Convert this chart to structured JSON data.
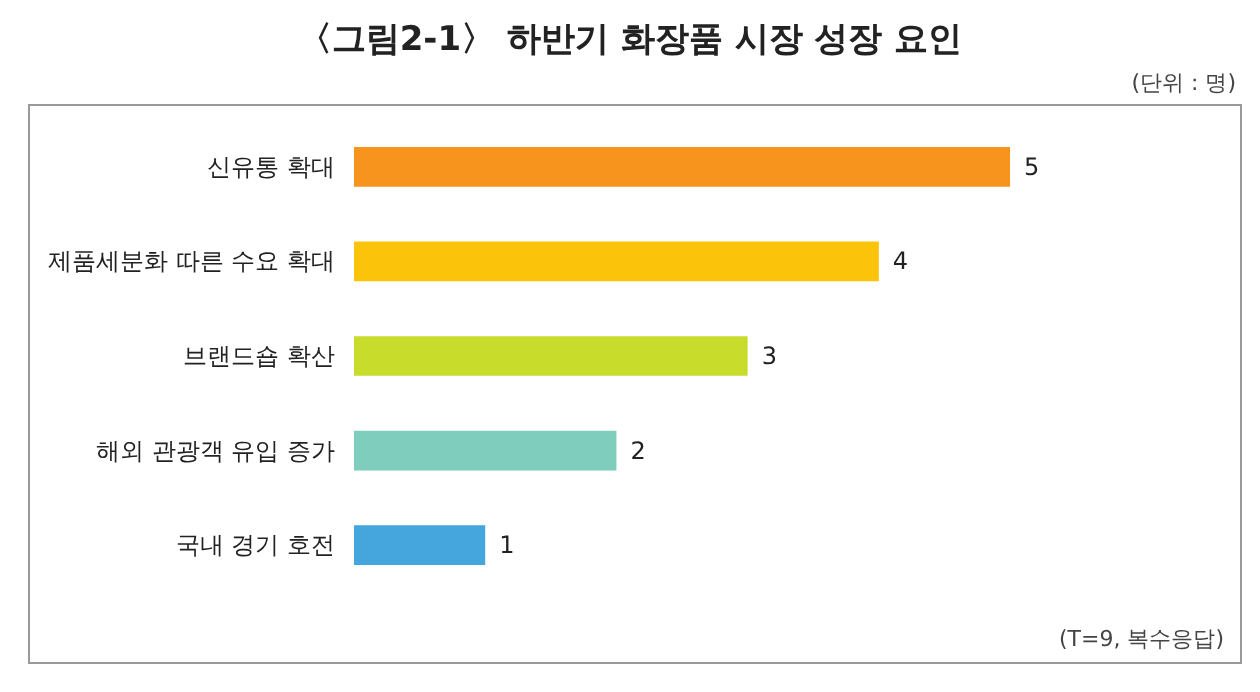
{
  "chart_data": {
    "type": "bar",
    "orientation": "horizontal",
    "title": "〈그림2-1〉 하반기 화장품 시장 성장 요인",
    "annotations": [
      "(단위 : 명)",
      "(T=9, 복수응답)"
    ],
    "categories": [
      "신유통 확대",
      "제품세분화 따른 수요 확대",
      "브랜드숍 확산",
      "해외 관광객 유입 증가",
      "국내 경기 호전"
    ],
    "values": [
      5,
      4,
      3,
      2,
      1
    ],
    "colors": [
      "#f7941d",
      "#fcc30b",
      "#c8dc2c",
      "#7fcdbd",
      "#45a6dd"
    ],
    "data_labels": true
  }
}
